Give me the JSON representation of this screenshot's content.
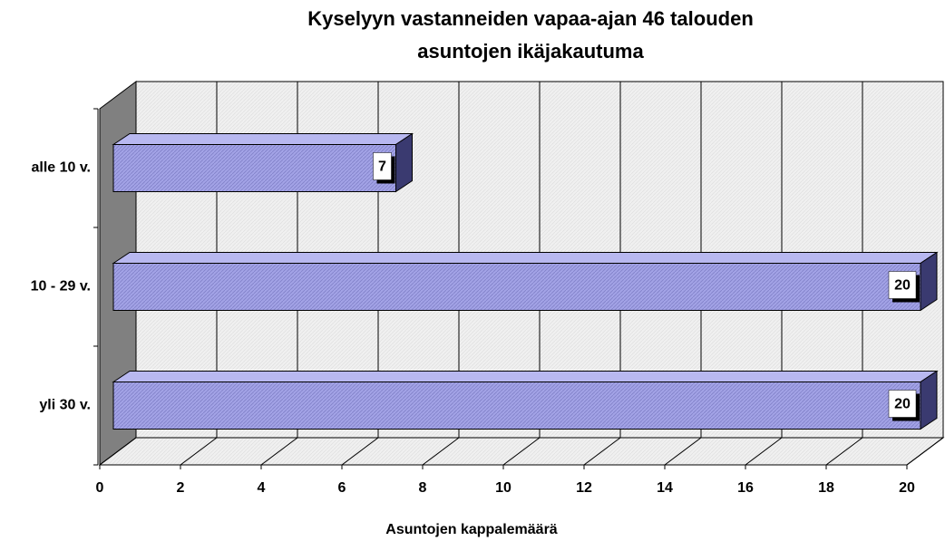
{
  "chart_data": {
    "type": "bar3d_horizontal",
    "title": [
      "Kyselyyn vastanneiden vapaa-ajan 46 talouden",
      "asuntojen ikäjakautuma"
    ],
    "x_label": "Asuntojen kappalemäärä",
    "categories": [
      "alle 10 v.",
      "10 - 29 v.",
      "yli 30 v."
    ],
    "values": [
      7,
      20,
      20
    ],
    "color": "#a3a3e6",
    "xlim": [
      0,
      20
    ],
    "xticks": [
      0,
      2,
      4,
      6,
      8,
      10,
      12,
      14,
      16,
      18,
      20
    ],
    "grid": true
  }
}
